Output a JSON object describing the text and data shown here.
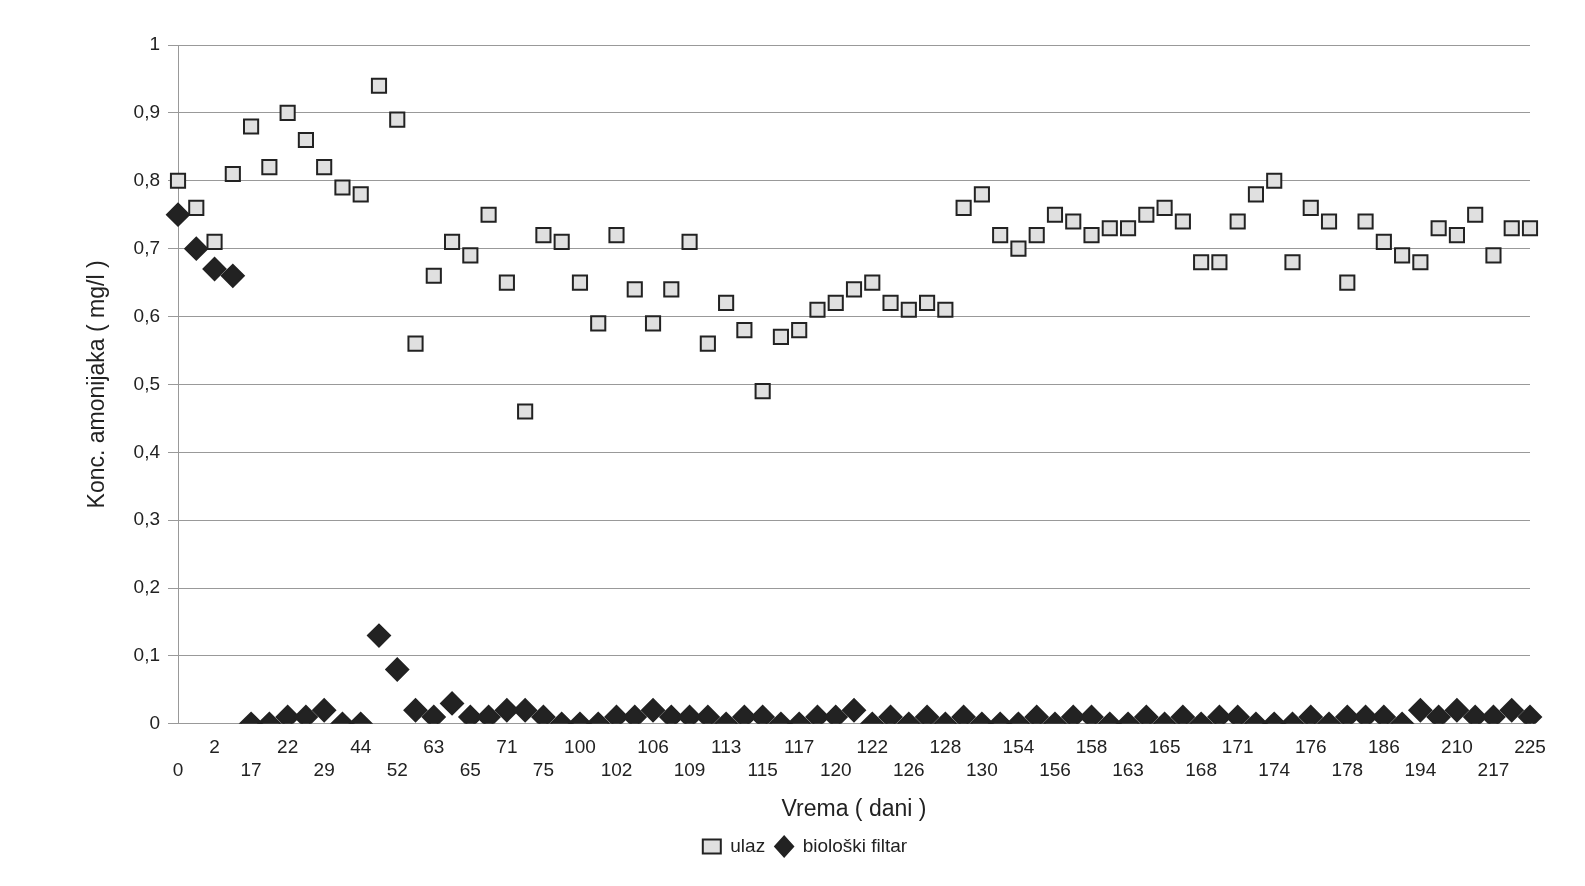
{
  "chart_data": {
    "type": "scatter",
    "xlabel": "Vrema ( dani )",
    "ylabel": "Konc. amonijaka ( mg/l )",
    "categories": [
      "0",
      null,
      "2",
      null,
      "17",
      null,
      "22",
      null,
      "29",
      null,
      "44",
      null,
      "52",
      null,
      "63",
      null,
      "65",
      null,
      "71",
      null,
      "75",
      null,
      "100",
      null,
      "102",
      null,
      "106",
      null,
      "109",
      null,
      "113",
      null,
      "115",
      null,
      "117",
      null,
      "120",
      null,
      "122",
      null,
      "126",
      null,
      "128",
      null,
      "130",
      null,
      "154",
      null,
      "156",
      null,
      "158",
      null,
      "163",
      null,
      "165",
      null,
      "168",
      null,
      "171",
      null,
      "174",
      null,
      "176",
      null,
      "178",
      null,
      "186",
      null,
      "194",
      null,
      "210",
      null,
      "217",
      null,
      "225"
    ],
    "series": [
      {
        "name": "ulaz",
        "color": "#e0e0e0",
        "marker": "square",
        "values": [
          0.8,
          0.76,
          0.71,
          0.81,
          0.88,
          0.82,
          0.9,
          0.86,
          0.82,
          0.79,
          0.78,
          0.94,
          0.89,
          0.56,
          0.66,
          0.71,
          0.69,
          0.75,
          0.65,
          0.46,
          0.72,
          0.71,
          0.65,
          0.59,
          0.72,
          0.64,
          0.59,
          0.64,
          0.71,
          0.56,
          0.62,
          0.58,
          0.49,
          0.57,
          0.58,
          0.61,
          0.62,
          0.64,
          0.65,
          0.62,
          0.61,
          0.62,
          0.61,
          0.76,
          0.78,
          0.72,
          0.7,
          0.72,
          0.75,
          0.74,
          0.72,
          0.73,
          0.73,
          0.75,
          0.76,
          0.74,
          0.68,
          0.68,
          0.74,
          0.78,
          0.8,
          0.68,
          0.76,
          0.74,
          0.65,
          0.74,
          0.71,
          0.69,
          0.68,
          0.73,
          0.72,
          0.75,
          0.69,
          0.73,
          0.73
        ]
      },
      {
        "name": "biološki filtar",
        "color": "#222222",
        "marker": "diamond",
        "values": [
          0.75,
          0.7,
          0.67,
          0.66,
          0,
          0,
          0.01,
          0.01,
          0.02,
          0,
          0,
          0.13,
          0.08,
          0.02,
          0.01,
          0.03,
          0.01,
          0.01,
          0.02,
          0.02,
          0.01,
          0,
          0,
          0,
          0.01,
          0.01,
          0.02,
          0.01,
          0.01,
          0.01,
          0,
          0.01,
          0.01,
          0,
          0,
          0.01,
          0.01,
          0.02,
          0,
          0.01,
          0,
          0.01,
          0,
          0.01,
          0,
          0,
          0,
          0.01,
          0,
          0.01,
          0.01,
          0,
          0,
          0.01,
          0,
          0.01,
          0,
          0.01,
          0.01,
          0,
          0,
          0,
          0.01,
          0,
          0.01,
          0.01,
          0.01,
          0,
          0.02,
          0.01,
          0.02,
          0.01,
          0.01,
          0.02,
          0.01
        ]
      }
    ],
    "ylim": [
      0,
      1
    ],
    "yticks": [
      0,
      {
        "value": 0.1,
        "label": "0,1"
      },
      {
        "value": 0.2,
        "label": "0,2"
      },
      {
        "value": 0.3,
        "label": "0,3"
      },
      {
        "value": 0.4,
        "label": "0,4"
      },
      {
        "value": 0.5,
        "label": "0,5"
      },
      {
        "value": 0.6,
        "label": "0,6"
      },
      {
        "value": 0.7,
        "label": "0,7"
      },
      {
        "value": 0.8,
        "label": "0,8"
      },
      {
        "value": 0.9,
        "label": "0,9"
      },
      1
    ],
    "grid": "y",
    "legend": "bottom"
  }
}
